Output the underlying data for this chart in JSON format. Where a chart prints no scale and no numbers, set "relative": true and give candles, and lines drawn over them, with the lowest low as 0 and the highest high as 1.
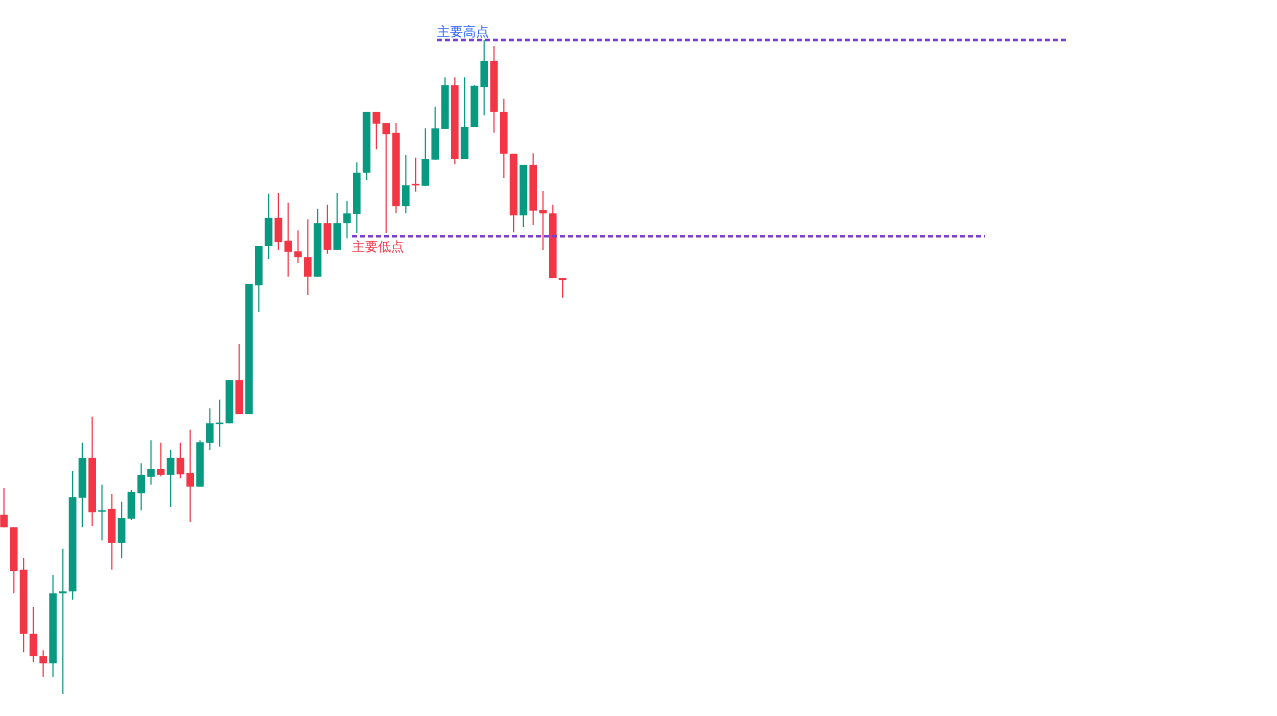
{
  "chart_data": {
    "type": "candlestick",
    "relative": true,
    "categories": [
      null,
      null,
      null,
      null,
      null,
      null,
      null,
      null,
      null,
      null,
      null,
      null,
      null,
      null,
      null,
      null,
      null,
      null,
      null,
      null,
      null,
      null,
      null,
      null,
      null,
      null,
      null,
      null,
      null,
      null,
      null,
      null,
      null,
      null,
      null,
      null,
      null,
      null,
      null,
      null,
      null,
      null,
      null,
      null,
      null,
      null,
      null,
      null,
      null,
      null,
      null,
      null,
      null,
      null,
      null,
      null,
      null,
      null
    ],
    "ohlc": [
      [
        0.274,
        0.315,
        0.255,
        0.255
      ],
      [
        0.255,
        0.255,
        0.154,
        0.188
      ],
      [
        0.19,
        0.208,
        0.064,
        0.092
      ],
      [
        0.092,
        0.133,
        0.049,
        0.058
      ],
      [
        0.058,
        0.067,
        0.026,
        0.047
      ],
      [
        0.047,
        0.182,
        0.026,
        0.154
      ],
      [
        0.154,
        0.222,
        0,
        0.157
      ],
      [
        0.157,
        0.341,
        0.144,
        0.301
      ],
      [
        0.3,
        0.384,
        0.255,
        0.361
      ],
      [
        0.361,
        0.424,
        0.257,
        0.278
      ],
      [
        0.28,
        0.32,
        0.235,
        0.281
      ],
      [
        0.283,
        0.306,
        0.19,
        0.231
      ],
      [
        0.231,
        0.294,
        0.208,
        0.269
      ],
      [
        0.268,
        0.312,
        0.266,
        0.309
      ],
      [
        0.307,
        0.353,
        0.281,
        0.335
      ],
      [
        0.332,
        0.388,
        0.32,
        0.344
      ],
      [
        0.344,
        0.384,
        0.333,
        0.335
      ],
      [
        0.335,
        0.373,
        0.286,
        0.361
      ],
      [
        0.361,
        0.384,
        0.33,
        0.336
      ],
      [
        0.338,
        0.404,
        0.263,
        0.317
      ],
      [
        0.317,
        0.388,
        0.317,
        0.385
      ],
      [
        0.384,
        0.437,
        0.373,
        0.414
      ],
      [
        0.414,
        0.45,
        0.378,
        0.415
      ],
      [
        0.414,
        0.48,
        0.414,
        0.48
      ],
      [
        0.48,
        0.535,
        0.428,
        0.428
      ],
      [
        0.428,
        0.627,
        0.428,
        0.627
      ],
      [
        0.625,
        0.685,
        0.584,
        0.685
      ],
      [
        0.685,
        0.765,
        0.665,
        0.728
      ],
      [
        0.728,
        0.766,
        0.679,
        0.691
      ],
      [
        0.693,
        0.751,
        0.638,
        0.676
      ],
      [
        0.677,
        0.709,
        0.659,
        0.668
      ],
      [
        0.668,
        0.726,
        0.61,
        0.638
      ],
      [
        0.638,
        0.742,
        0.638,
        0.72
      ],
      [
        0.72,
        0.748,
        0.673,
        0.679
      ],
      [
        0.679,
        0.766,
        0.679,
        0.72
      ],
      [
        0.72,
        0.754,
        0.697,
        0.735
      ],
      [
        0.734,
        0.813,
        0.705,
        0.797
      ],
      [
        0.797,
        0.89,
        0.786,
        0.89
      ],
      [
        0.89,
        0.89,
        0.833,
        0.872
      ],
      [
        0.873,
        0.873,
        0.705,
        0.856
      ],
      [
        0.858,
        0.873,
        0.735,
        0.746
      ],
      [
        0.746,
        0.824,
        0.735,
        0.778
      ],
      [
        0.78,
        0.82,
        0.768,
        0.778
      ],
      [
        0.777,
        0.865,
        0.777,
        0.818
      ],
      [
        0.817,
        0.898,
        0.817,
        0.865
      ],
      [
        0.864,
        0.943,
        0.864,
        0.931
      ],
      [
        0.931,
        0.943,
        0.81,
        0.818
      ],
      [
        0.818,
        0.943,
        0.818,
        0.867
      ],
      [
        0.867,
        0.931,
        0.867,
        0.93
      ],
      [
        0.928,
        1,
        0.885,
        0.968
      ],
      [
        0.968,
        0.991,
        0.858,
        0.89
      ],
      [
        0.89,
        0.91,
        0.789,
        0.826
      ],
      [
        0.826,
        0.826,
        0.706,
        0.732
      ],
      [
        0.732,
        0.809,
        0.714,
        0.809
      ],
      [
        0.809,
        0.827,
        0.717,
        0.739
      ],
      [
        0.74,
        0.769,
        0.679,
        0.735
      ],
      [
        0.735,
        0.748,
        0.636,
        0.636
      ],
      [
        0.636,
        0.636,
        0.606,
        0.633
      ]
    ],
    "colors": [
      "#f23645",
      "#f23645",
      "#f23645",
      "#f23645",
      "#f23645",
      "#089981",
      "#089981",
      "#089981",
      "#089981",
      "#f23645",
      "#089981",
      "#f23645",
      "#089981",
      "#089981",
      "#089981",
      "#089981",
      "#f23645",
      "#089981",
      "#f23645",
      "#f23645",
      "#089981",
      "#089981",
      "#089981",
      "#089981",
      "#f23645",
      "#089981",
      "#089981",
      "#089981",
      "#f23645",
      "#f23645",
      "#f23645",
      "#f23645",
      "#089981",
      "#f23645",
      "#089981",
      "#089981",
      "#089981",
      "#089981",
      "#f23645",
      "#f23645",
      "#f23645",
      "#089981",
      "#f23645",
      "#089981",
      "#089981",
      "#089981",
      "#f23645",
      "#089981",
      "#089981",
      "#089981",
      "#f23645",
      "#f23645",
      "#f23645",
      "#089981",
      "#f23645",
      "#f23645",
      "#f23645",
      "#f23645"
    ],
    "ref_lines": [
      {
        "axis": "y",
        "value": 1,
        "label": "主要高点",
        "color": "#7b3fd0",
        "line_style": "dashed"
      },
      {
        "axis": "y",
        "value": 0.7,
        "label": "主要低点",
        "color": "#7b3fd0",
        "line_style": "dashed"
      }
    ]
  }
}
